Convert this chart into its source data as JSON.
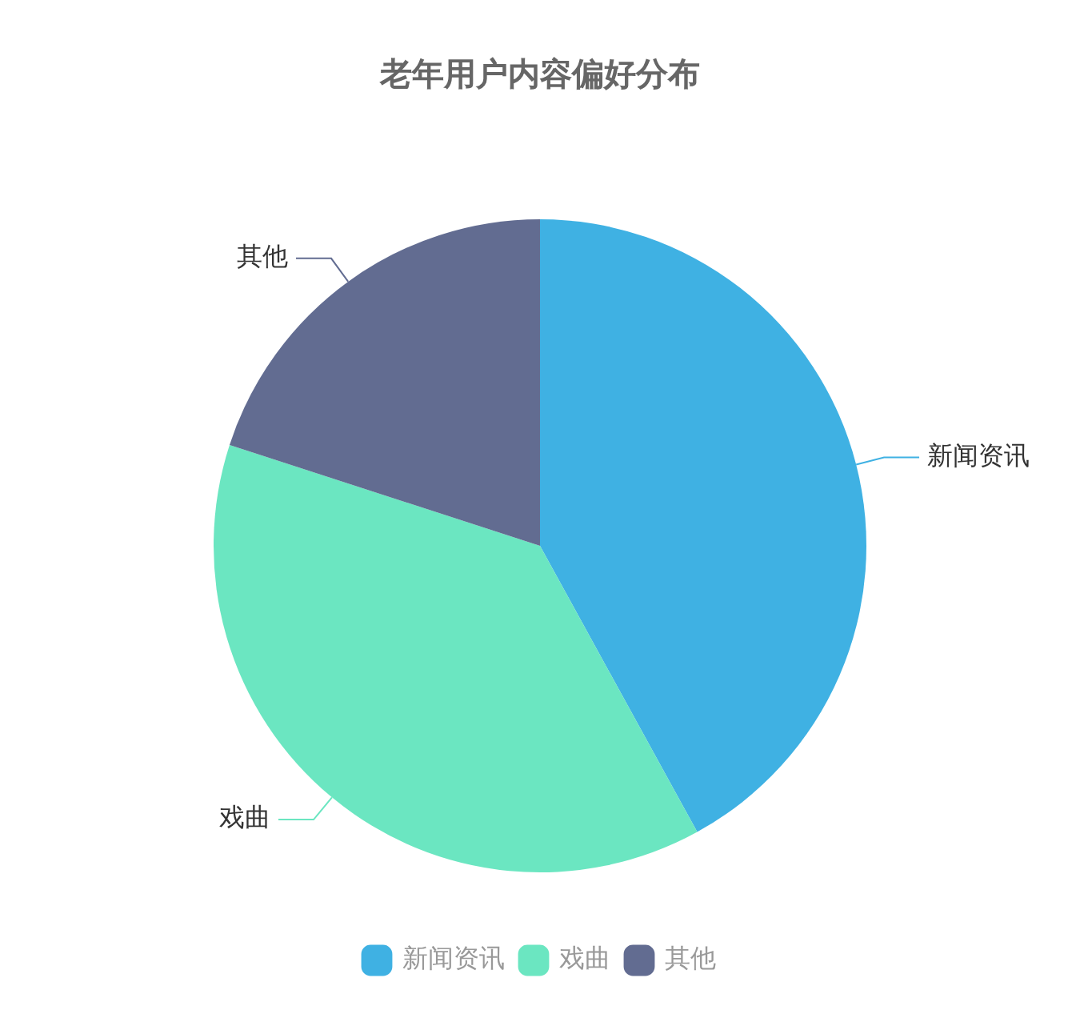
{
  "chart_data": {
    "type": "pie",
    "title": "老年用户内容偏好分布",
    "categories": [
      "新闻资讯",
      "戏曲",
      "其他"
    ],
    "values": [
      42,
      38,
      20
    ],
    "colors": [
      "#3fb1e3",
      "#6be6c1",
      "#626c91"
    ],
    "legend": "bottom"
  }
}
